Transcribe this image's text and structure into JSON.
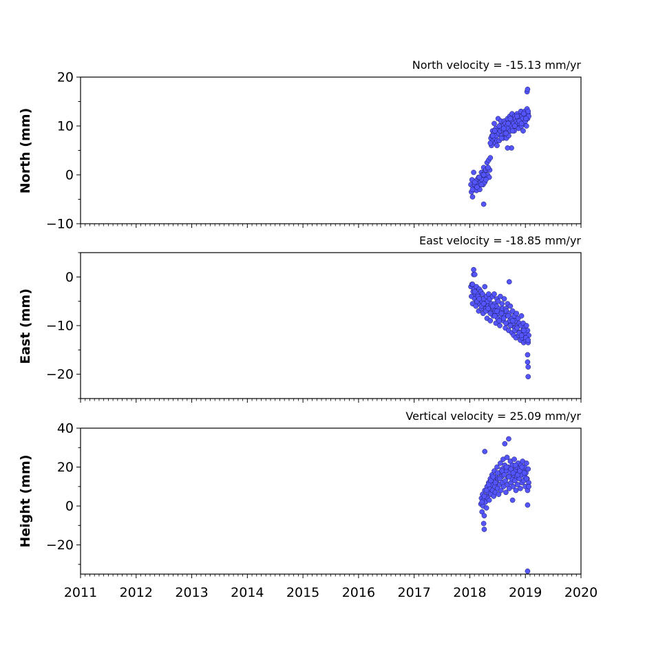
{
  "chart_data": [
    {
      "type": "scatter",
      "title": "North velocity = -15.13 mm/yr",
      "ylabel": "North (mm)",
      "xlabel": "",
      "xlim": [
        2011,
        2020
      ],
      "ylim": [
        -10,
        20
      ],
      "yticks": [
        -10,
        0,
        10,
        20
      ],
      "show_xtick_labels": false,
      "marker_color": "#5555ff",
      "series": [
        {
          "x": [
            2018.02,
            2018.03,
            2018.04,
            2018.05,
            2018.06,
            2018.07,
            2018.08,
            2018.09,
            2018.1,
            2018.11,
            2018.12,
            2018.13,
            2018.14,
            2018.15,
            2018.16,
            2018.17,
            2018.18,
            2018.19,
            2018.2,
            2018.21,
            2018.22,
            2018.23,
            2018.24,
            2018.25,
            2018.26,
            2018.27,
            2018.28,
            2018.29,
            2018.3,
            2018.31,
            2018.32,
            2018.33,
            2018.34,
            2018.35,
            2018.36,
            2018.37,
            2018.38,
            2018.39,
            2018.4,
            2018.41,
            2018.42,
            2018.43,
            2018.44,
            2018.45,
            2018.46,
            2018.47,
            2018.48,
            2018.49,
            2018.5,
            2018.51,
            2018.52,
            2018.53,
            2018.54,
            2018.55,
            2018.56,
            2018.57,
            2018.58,
            2018.59,
            2018.6,
            2018.61,
            2018.62,
            2018.63,
            2018.64,
            2018.65,
            2018.66,
            2018.67,
            2018.68,
            2018.69,
            2018.7,
            2018.71,
            2018.72,
            2018.73,
            2018.74,
            2018.75,
            2018.76,
            2018.77,
            2018.78,
            2018.79,
            2018.8,
            2018.81,
            2018.82,
            2018.83,
            2018.84,
            2018.85,
            2018.86,
            2018.87,
            2018.88,
            2018.89,
            2018.9,
            2018.91,
            2018.92,
            2018.93,
            2018.94,
            2018.95,
            2018.96,
            2018.97,
            2018.98,
            2018.99,
            2019.0,
            2019.01,
            2019.02,
            2019.03,
            2019.04,
            2019.05,
            2019.06,
            2018.05,
            2018.09,
            2018.13,
            2018.17,
            2018.21,
            2018.25,
            2018.29,
            2018.33,
            2018.37,
            2018.41,
            2018.45,
            2018.49,
            2018.53,
            2018.57,
            2018.61,
            2018.65,
            2018.69,
            2018.73,
            2018.77,
            2018.81,
            2018.85,
            2018.89,
            2018.93,
            2018.97,
            2019.01,
            2019.05,
            2018.25,
            2018.75,
            2018.68,
            2019.03,
            2019.04
          ],
          "y": [
            -2.0,
            -3.5,
            -1.0,
            -4.5,
            -2.5,
            0.5,
            -3.0,
            -2.0,
            -1.5,
            -2.8,
            -3.2,
            -1.0,
            -2.5,
            -1.8,
            -0.5,
            -2.2,
            -3.0,
            -0.8,
            -1.5,
            0.5,
            -1.0,
            0.0,
            -2.0,
            1.5,
            0.0,
            -1.5,
            0.8,
            1.0,
            -0.5,
            2.5,
            0.0,
            1.2,
            3.0,
            -0.5,
            1.0,
            3.5,
            7.5,
            6.0,
            8.0,
            9.0,
            7.0,
            8.5,
            10.5,
            7.5,
            6.5,
            9.5,
            8.0,
            7.0,
            9.0,
            11.5,
            8.5,
            7.0,
            10.0,
            9.0,
            11.0,
            8.0,
            9.5,
            10.0,
            7.5,
            9.0,
            11.0,
            8.5,
            10.5,
            9.0,
            7.5,
            10.0,
            11.5,
            9.5,
            8.0,
            10.5,
            12.0,
            9.0,
            11.0,
            10.0,
            12.5,
            9.5,
            11.0,
            10.5,
            9.0,
            12.0,
            11.5,
            10.0,
            11.0,
            12.5,
            10.5,
            11.5,
            9.5,
            12.0,
            10.5,
            11.0,
            13.0,
            10.0,
            12.0,
            11.5,
            9.0,
            12.5,
            10.5,
            13.0,
            11.0,
            12.0,
            10.0,
            13.5,
            11.5,
            12.5,
            12.0,
            -3.0,
            -1.5,
            -2.5,
            -0.5,
            -2.0,
            0.0,
            -1.0,
            1.5,
            6.5,
            8.0,
            9.0,
            6.0,
            10.0,
            7.5,
            9.5,
            8.5,
            10.5,
            11.5,
            9.0,
            10.0,
            12.0,
            11.0,
            10.5,
            12.5,
            11.5,
            13.0,
            -6.0,
            5.5,
            5.5,
            17.0,
            17.5
          ]
        }
      ]
    },
    {
      "type": "scatter",
      "title": "East velocity = -18.85 mm/yr",
      "ylabel": "East (mm)",
      "xlabel": "",
      "xlim": [
        2011,
        2020
      ],
      "ylim": [
        -25,
        5
      ],
      "yticks": [
        -20,
        -10,
        0
      ],
      "show_xtick_labels": false,
      "marker_color": "#5555ff",
      "series": [
        {
          "x": [
            2018.02,
            2018.03,
            2018.04,
            2018.05,
            2018.06,
            2018.07,
            2018.08,
            2018.09,
            2018.1,
            2018.11,
            2018.12,
            2018.13,
            2018.14,
            2018.15,
            2018.16,
            2018.17,
            2018.18,
            2018.19,
            2018.2,
            2018.21,
            2018.22,
            2018.23,
            2018.24,
            2018.25,
            2018.26,
            2018.27,
            2018.28,
            2018.29,
            2018.3,
            2018.31,
            2018.32,
            2018.33,
            2018.34,
            2018.35,
            2018.36,
            2018.37,
            2018.38,
            2018.39,
            2018.4,
            2018.41,
            2018.42,
            2018.43,
            2018.44,
            2018.45,
            2018.46,
            2018.47,
            2018.48,
            2018.49,
            2018.5,
            2018.51,
            2018.52,
            2018.53,
            2018.54,
            2018.55,
            2018.56,
            2018.57,
            2018.58,
            2018.59,
            2018.6,
            2018.61,
            2018.62,
            2018.63,
            2018.64,
            2018.65,
            2018.66,
            2018.67,
            2018.68,
            2018.69,
            2018.7,
            2018.71,
            2018.72,
            2018.73,
            2018.74,
            2018.75,
            2018.76,
            2018.77,
            2018.78,
            2018.79,
            2018.8,
            2018.81,
            2018.82,
            2018.83,
            2018.84,
            2018.85,
            2018.86,
            2018.87,
            2018.88,
            2018.89,
            2018.9,
            2018.91,
            2018.92,
            2018.93,
            2018.94,
            2018.95,
            2018.96,
            2018.97,
            2018.98,
            2018.99,
            2019.0,
            2019.01,
            2019.02,
            2019.03,
            2019.04,
            2019.05,
            2019.06,
            2018.05,
            2018.09,
            2018.13,
            2018.17,
            2018.21,
            2018.25,
            2018.29,
            2018.33,
            2018.37,
            2018.41,
            2018.45,
            2018.49,
            2018.53,
            2018.57,
            2018.61,
            2018.65,
            2018.69,
            2018.73,
            2018.77,
            2018.81,
            2018.85,
            2018.89,
            2018.93,
            2018.97,
            2019.01,
            2019.05,
            2018.07,
            2018.09,
            2018.71,
            2019.04,
            2019.04,
            2019.05,
            2019.05
          ],
          "y": [
            -2.0,
            -4.0,
            -1.5,
            -5.5,
            -3.0,
            0.5,
            -2.5,
            -4.5,
            -3.5,
            -6.0,
            -2.0,
            -5.0,
            -3.5,
            -4.0,
            -7.0,
            -2.5,
            -5.5,
            -4.5,
            -3.0,
            -6.5,
            -5.0,
            -3.5,
            -7.5,
            -4.5,
            -6.0,
            -2.0,
            -5.5,
            -6.5,
            -4.0,
            -8.5,
            -5.0,
            -6.0,
            -3.5,
            -7.0,
            -4.5,
            -9.0,
            -6.0,
            -5.5,
            -7.5,
            -4.0,
            -8.0,
            -6.5,
            -3.5,
            -5.5,
            -7.0,
            -9.5,
            -6.0,
            -4.5,
            -8.5,
            -5.0,
            -7.5,
            -6.5,
            -10.0,
            -4.0,
            -7.0,
            -8.5,
            -5.5,
            -6.5,
            -9.0,
            -7.5,
            -4.5,
            -8.0,
            -10.5,
            -6.5,
            -7.0,
            -9.5,
            -5.5,
            -8.0,
            -11.0,
            -7.5,
            -9.0,
            -6.0,
            -10.0,
            -8.5,
            -11.5,
            -7.0,
            -9.5,
            -12.0,
            -8.0,
            -10.5,
            -9.0,
            -12.5,
            -7.5,
            -11.0,
            -10.0,
            -8.5,
            -12.0,
            -9.5,
            -11.5,
            -13.0,
            -10.0,
            -8.0,
            -12.5,
            -11.0,
            -9.5,
            -13.5,
            -10.5,
            -12.0,
            -11.5,
            -13.0,
            -10.0,
            -12.5,
            -11.0,
            -13.5,
            -12.0,
            -1.5,
            -3.0,
            -5.0,
            -4.5,
            -6.0,
            -5.5,
            -7.0,
            -6.5,
            -7.5,
            -6.0,
            -8.0,
            -7.0,
            -9.0,
            -7.5,
            -8.5,
            -9.5,
            -8.0,
            -10.0,
            -9.0,
            -11.0,
            -10.5,
            -11.5,
            -12.0,
            -11.0,
            -12.5,
            -13.0,
            1.5,
            0.5,
            -1.0,
            -16.0,
            -17.5,
            -18.5,
            -20.5
          ]
        }
      ]
    },
    {
      "type": "scatter",
      "title": "Vertical velocity = 25.09 mm/yr",
      "ylabel": "Height (mm)",
      "xlabel": "",
      "xlim": [
        2011,
        2020
      ],
      "ylim": [
        -35,
        40
      ],
      "yticks": [
        -20,
        0,
        20,
        40
      ],
      "xticks": [
        2011,
        2012,
        2013,
        2014,
        2015,
        2016,
        2017,
        2018,
        2019,
        2020
      ],
      "show_xtick_labels": true,
      "marker_color": "#5555ff",
      "series": [
        {
          "x": [
            2018.2,
            2018.21,
            2018.22,
            2018.23,
            2018.24,
            2018.25,
            2018.26,
            2018.27,
            2018.28,
            2018.29,
            2018.3,
            2018.31,
            2018.32,
            2018.33,
            2018.34,
            2018.35,
            2018.36,
            2018.37,
            2018.38,
            2018.39,
            2018.4,
            2018.41,
            2018.42,
            2018.43,
            2018.44,
            2018.45,
            2018.46,
            2018.47,
            2018.48,
            2018.49,
            2018.5,
            2018.51,
            2018.52,
            2018.53,
            2018.54,
            2018.55,
            2018.56,
            2018.57,
            2018.58,
            2018.59,
            2018.6,
            2018.61,
            2018.62,
            2018.63,
            2018.64,
            2018.65,
            2018.66,
            2018.67,
            2018.68,
            2018.69,
            2018.7,
            2018.71,
            2018.72,
            2018.73,
            2018.74,
            2018.75,
            2018.76,
            2018.77,
            2018.78,
            2018.79,
            2018.8,
            2018.81,
            2018.82,
            2018.83,
            2018.84,
            2018.85,
            2018.86,
            2018.87,
            2018.88,
            2018.89,
            2018.9,
            2018.91,
            2018.92,
            2018.93,
            2018.94,
            2018.95,
            2018.96,
            2018.97,
            2018.98,
            2018.99,
            2019.0,
            2019.01,
            2019.02,
            2019.03,
            2019.04,
            2019.05,
            2019.06,
            2018.22,
            2018.26,
            2018.3,
            2018.34,
            2018.38,
            2018.42,
            2018.46,
            2018.5,
            2018.54,
            2018.58,
            2018.62,
            2018.66,
            2018.7,
            2018.74,
            2018.78,
            2018.82,
            2018.86,
            2018.9,
            2018.94,
            2018.98,
            2019.02,
            2019.06,
            2018.25,
            2018.26,
            2018.27,
            2018.63,
            2018.7,
            2018.77,
            2019.04,
            2019.04
          ],
          "y": [
            1.0,
            4.0,
            -3.0,
            6.0,
            0.0,
            3.0,
            -5.0,
            8.0,
            2.0,
            5.0,
            -1.0,
            10.0,
            4.0,
            7.0,
            12.0,
            3.0,
            9.0,
            14.0,
            6.0,
            11.0,
            16.0,
            8.0,
            13.0,
            5.0,
            18.0,
            10.0,
            7.0,
            15.0,
            12.0,
            20.0,
            9.0,
            14.0,
            6.0,
            17.0,
            11.0,
            22.0,
            8.0,
            15.0,
            19.0,
            12.0,
            24.0,
            10.0,
            16.0,
            21.0,
            13.0,
            7.0,
            18.0,
            25.0,
            11.0,
            15.0,
            20.0,
            9.0,
            17.0,
            23.0,
            12.0,
            19.0,
            14.0,
            21.0,
            10.0,
            16.0,
            24.0,
            13.0,
            18.0,
            8.0,
            20.0,
            15.0,
            11.0,
            22.0,
            17.0,
            14.0,
            19.0,
            9.0,
            21.0,
            16.0,
            12.0,
            23.0,
            18.0,
            13.0,
            20.0,
            15.0,
            10.0,
            17.0,
            22.0,
            14.0,
            8.0,
            19.0,
            12.0,
            2.0,
            5.0,
            8.0,
            11.0,
            13.0,
            15.0,
            12.0,
            17.0,
            14.0,
            18.0,
            16.0,
            20.0,
            15.0,
            19.0,
            17.0,
            21.0,
            16.0,
            18.0,
            20.0,
            17.0,
            14.0,
            10.0,
            -9.0,
            -12.0,
            28.0,
            32.0,
            34.5,
            3.0,
            0.5,
            -33.5
          ]
        }
      ]
    }
  ]
}
